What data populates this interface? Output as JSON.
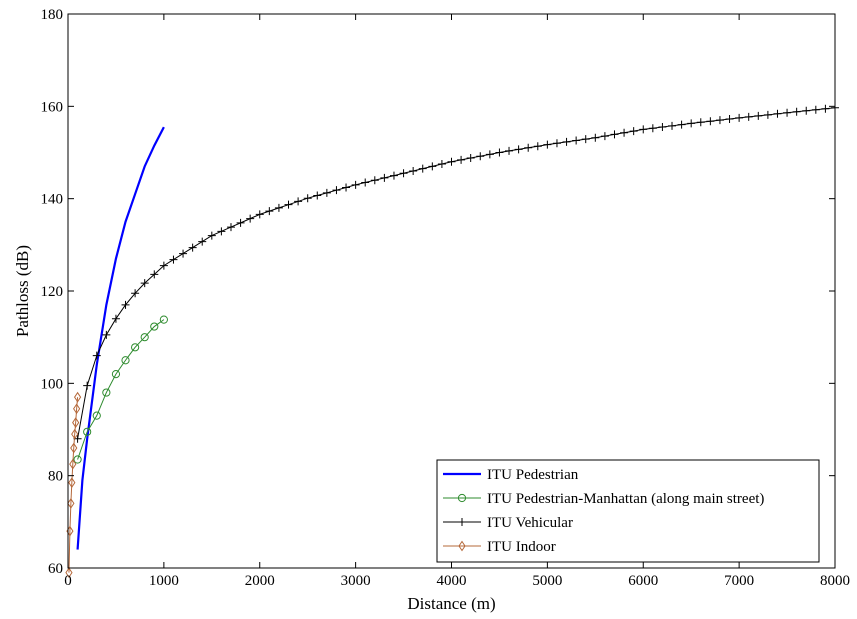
{
  "chart_data": {
    "type": "line",
    "xlabel": "Distance (m)",
    "ylabel": "Pathloss (dB)",
    "xlim": [
      0,
      8000
    ],
    "ylim": [
      60,
      180
    ],
    "xticks": [
      0,
      1000,
      2000,
      3000,
      4000,
      5000,
      6000,
      7000,
      8000
    ],
    "yticks": [
      60,
      80,
      100,
      120,
      140,
      160,
      180
    ],
    "xtick_labels": [
      "0",
      "1000",
      "2000",
      "3000",
      "4000",
      "5000",
      "6000",
      "7000",
      "8000"
    ],
    "ytick_labels": [
      "60",
      "80",
      "100",
      "120",
      "140",
      "160",
      "180"
    ],
    "grid": false,
    "legend_position": "bottom-right",
    "series": [
      {
        "name": "ITU Pedestrian",
        "color": "#0000ff",
        "marker": "none",
        "x": [
          100,
          150,
          200,
          300,
          400,
          500,
          600,
          700,
          800,
          900,
          1000
        ],
        "y": [
          64,
          79,
          88,
          104,
          117,
          127,
          135,
          141,
          147,
          151.5,
          155.5
        ]
      },
      {
        "name": "ITU Pedestrian-Manhattan (along main street)",
        "color": "#2e8b2e",
        "marker": "circle",
        "x": [
          100,
          200,
          300,
          400,
          500,
          600,
          700,
          800,
          900,
          1000
        ],
        "y": [
          83.5,
          89.5,
          93,
          98,
          102,
          105,
          107.8,
          110,
          112.3,
          113.8
        ]
      },
      {
        "name": "ITU Vehicular",
        "color": "#000000",
        "marker": "plus",
        "x_range": [
          100,
          8000
        ],
        "x_step": 100,
        "points": [
          [
            100,
            88
          ],
          [
            200,
            99.5
          ],
          [
            300,
            106
          ],
          [
            400,
            110.5
          ],
          [
            500,
            114
          ],
          [
            600,
            117
          ],
          [
            700,
            119.5
          ],
          [
            800,
            121.7
          ],
          [
            900,
            123.6
          ],
          [
            1000,
            125.5
          ],
          [
            1500,
            132
          ],
          [
            2000,
            136.6
          ],
          [
            2500,
            140.1
          ],
          [
            3000,
            143
          ],
          [
            3500,
            145.5
          ],
          [
            4000,
            148
          ],
          [
            4500,
            150
          ],
          [
            5000,
            151.7
          ],
          [
            5500,
            153.2
          ],
          [
            6000,
            155
          ],
          [
            6500,
            156.3
          ],
          [
            7000,
            157.5
          ],
          [
            7500,
            158.6
          ],
          [
            8000,
            159.7
          ]
        ]
      },
      {
        "name": "ITU Indoor",
        "color": "#b5683a",
        "marker": "diamond",
        "x": [
          10,
          20,
          30,
          40,
          50,
          60,
          70,
          80,
          90,
          100
        ],
        "y": [
          59,
          68,
          74,
          78.5,
          82.5,
          86,
          89,
          91.5,
          94.5,
          97
        ]
      }
    ]
  }
}
